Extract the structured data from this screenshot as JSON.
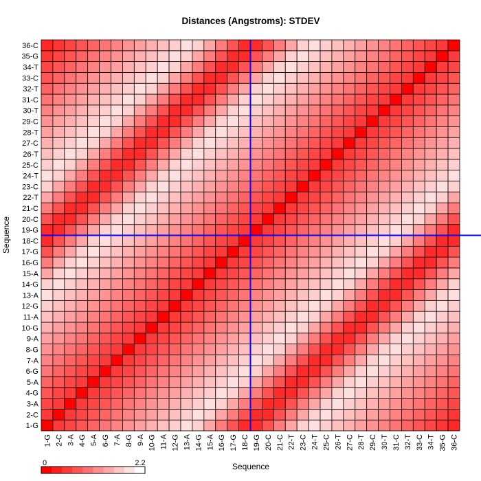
{
  "chart_data": {
    "type": "heatmap",
    "title": "Distances (Angstroms):  STDEV",
    "xlabel": "Sequence",
    "ylabel": "Sequence",
    "categories": [
      "1-G",
      "2-C",
      "3-A",
      "4-G",
      "5-A",
      "6-G",
      "7-A",
      "8-G",
      "9-A",
      "10-G",
      "11-A",
      "12-G",
      "13-A",
      "14-G",
      "15-A",
      "16-G",
      "17-G",
      "18-C",
      "19-G",
      "20-C",
      "21-C",
      "22-T",
      "23-C",
      "24-T",
      "25-C",
      "26-T",
      "27-C",
      "28-T",
      "29-C",
      "30-T",
      "31-C",
      "32-T",
      "33-C",
      "34-T",
      "35-G",
      "36-C"
    ],
    "color_scale": {
      "min": 0,
      "max": 2.2,
      "min_label": "0",
      "max_label": "2.2",
      "low_color": "#ff0000",
      "high_color": "#ffffff"
    },
    "grid": true,
    "crosshair": {
      "x": "18-C",
      "y": "18-C",
      "color": "#0000ff"
    },
    "values": [
      [
        0.0,
        0.5,
        0.6,
        0.73,
        0.86,
        1.0,
        1.13,
        1.26,
        1.39,
        1.52,
        1.66,
        1.79,
        1.92,
        1.8,
        1.44,
        1.08,
        0.72,
        0.36,
        0.36,
        0.72,
        1.08,
        1.44,
        1.8,
        1.92,
        1.79,
        1.66,
        1.52,
        1.39,
        1.26,
        1.13,
        1.0,
        0.86,
        0.73,
        0.6,
        0.47,
        0.34
      ],
      [
        0.5,
        0.0,
        0.5,
        0.6,
        0.73,
        0.86,
        1.0,
        1.13,
        1.26,
        1.39,
        1.52,
        1.66,
        1.79,
        1.92,
        1.8,
        1.44,
        1.08,
        0.72,
        0.36,
        0.36,
        0.72,
        1.08,
        1.44,
        1.8,
        1.92,
        1.79,
        1.66,
        1.52,
        1.39,
        1.26,
        1.13,
        1.0,
        0.86,
        0.73,
        0.6,
        0.47
      ],
      [
        0.6,
        0.5,
        0.0,
        0.5,
        0.6,
        0.73,
        0.86,
        1.0,
        1.13,
        1.26,
        1.39,
        1.52,
        1.66,
        1.79,
        1.92,
        1.8,
        1.44,
        1.08,
        0.72,
        0.36,
        0.36,
        0.72,
        1.08,
        1.44,
        1.8,
        1.92,
        1.79,
        1.66,
        1.52,
        1.39,
        1.26,
        1.13,
        1.0,
        0.86,
        0.73,
        0.6
      ],
      [
        0.73,
        0.6,
        0.5,
        0.0,
        0.5,
        0.6,
        0.73,
        0.86,
        1.0,
        1.13,
        1.26,
        1.39,
        1.52,
        1.66,
        1.79,
        1.92,
        1.8,
        1.44,
        1.08,
        0.72,
        0.36,
        0.36,
        0.72,
        1.08,
        1.44,
        1.8,
        1.92,
        1.79,
        1.66,
        1.52,
        1.39,
        1.26,
        1.13,
        1.0,
        0.86,
        0.73
      ],
      [
        0.86,
        0.73,
        0.6,
        0.5,
        0.0,
        0.5,
        0.6,
        0.73,
        0.86,
        1.0,
        1.13,
        1.26,
        1.39,
        1.52,
        1.66,
        1.79,
        1.92,
        1.8,
        1.44,
        1.08,
        0.72,
        0.36,
        0.36,
        0.72,
        1.08,
        1.44,
        1.8,
        1.92,
        1.79,
        1.66,
        1.52,
        1.39,
        1.26,
        1.13,
        1.0,
        0.86
      ],
      [
        1.0,
        0.86,
        0.73,
        0.6,
        0.5,
        0.0,
        0.5,
        0.6,
        0.73,
        0.86,
        1.0,
        1.13,
        1.26,
        1.39,
        1.52,
        1.66,
        1.79,
        1.92,
        1.8,
        1.44,
        1.08,
        0.72,
        0.36,
        0.36,
        0.72,
        1.08,
        1.44,
        1.8,
        1.92,
        1.79,
        1.66,
        1.52,
        1.39,
        1.26,
        1.13,
        1.0
      ],
      [
        1.13,
        1.0,
        0.86,
        0.73,
        0.6,
        0.5,
        0.0,
        0.5,
        0.6,
        0.73,
        0.86,
        1.0,
        1.13,
        1.26,
        1.39,
        1.52,
        1.66,
        1.79,
        1.92,
        1.8,
        1.44,
        1.08,
        0.72,
        0.36,
        0.36,
        0.72,
        1.08,
        1.44,
        1.8,
        1.92,
        1.79,
        1.66,
        1.52,
        1.39,
        1.26,
        1.13
      ],
      [
        1.26,
        1.13,
        1.0,
        0.86,
        0.73,
        0.6,
        0.5,
        0.0,
        0.5,
        0.6,
        0.73,
        0.86,
        1.0,
        1.13,
        1.26,
        1.39,
        1.52,
        1.66,
        1.79,
        1.92,
        1.8,
        1.44,
        1.08,
        0.72,
        0.36,
        0.36,
        0.72,
        1.08,
        1.44,
        1.8,
        1.92,
        1.79,
        1.66,
        1.52,
        1.39,
        1.26
      ],
      [
        1.39,
        1.26,
        1.13,
        1.0,
        0.86,
        0.73,
        0.6,
        0.5,
        0.0,
        0.5,
        0.6,
        0.73,
        0.86,
        1.0,
        1.13,
        1.26,
        1.39,
        1.52,
        1.66,
        1.79,
        1.92,
        1.8,
        1.44,
        1.08,
        0.72,
        0.36,
        0.36,
        0.72,
        1.08,
        1.44,
        1.8,
        1.92,
        1.79,
        1.66,
        1.52,
        1.39
      ],
      [
        1.52,
        1.39,
        1.26,
        1.13,
        1.0,
        0.86,
        0.73,
        0.6,
        0.5,
        0.0,
        0.5,
        0.6,
        0.73,
        0.86,
        1.0,
        1.13,
        1.26,
        1.39,
        1.52,
        1.66,
        1.79,
        1.92,
        1.8,
        1.44,
        1.08,
        0.72,
        0.36,
        0.36,
        0.72,
        1.08,
        1.44,
        1.8,
        1.92,
        1.79,
        1.66,
        1.52
      ],
      [
        1.66,
        1.52,
        1.39,
        1.26,
        1.13,
        1.0,
        0.86,
        0.73,
        0.6,
        0.5,
        0.0,
        0.5,
        0.6,
        0.73,
        0.86,
        1.0,
        1.13,
        1.26,
        1.39,
        1.52,
        1.66,
        1.79,
        1.92,
        1.8,
        1.44,
        1.08,
        0.72,
        0.36,
        0.36,
        0.72,
        1.08,
        1.44,
        1.8,
        1.92,
        1.79,
        1.66
      ],
      [
        1.79,
        1.66,
        1.52,
        1.39,
        1.26,
        1.13,
        1.0,
        0.86,
        0.73,
        0.6,
        0.5,
        0.0,
        0.5,
        0.6,
        0.73,
        0.86,
        1.0,
        1.13,
        1.26,
        1.39,
        1.52,
        1.66,
        1.79,
        1.92,
        1.8,
        1.44,
        1.08,
        0.72,
        0.36,
        0.36,
        0.72,
        1.08,
        1.44,
        1.8,
        1.92,
        1.79
      ],
      [
        1.92,
        1.79,
        1.66,
        1.52,
        1.39,
        1.26,
        1.13,
        1.0,
        0.86,
        0.73,
        0.6,
        0.5,
        0.0,
        0.5,
        0.6,
        0.73,
        0.86,
        1.0,
        1.13,
        1.26,
        1.39,
        1.52,
        1.66,
        1.79,
        1.92,
        1.8,
        1.44,
        1.08,
        0.72,
        0.36,
        0.36,
        0.72,
        1.08,
        1.44,
        1.8,
        1.92
      ],
      [
        1.8,
        1.92,
        1.79,
        1.66,
        1.52,
        1.39,
        1.26,
        1.13,
        1.0,
        0.86,
        0.73,
        0.6,
        0.5,
        0.0,
        0.5,
        0.6,
        0.73,
        0.86,
        1.0,
        1.13,
        1.26,
        1.39,
        1.52,
        1.66,
        1.79,
        1.92,
        1.8,
        1.44,
        1.08,
        0.72,
        0.36,
        0.36,
        0.72,
        1.08,
        1.44,
        1.8
      ],
      [
        1.44,
        1.8,
        1.92,
        1.79,
        1.66,
        1.52,
        1.39,
        1.26,
        1.13,
        1.0,
        0.86,
        0.73,
        0.6,
        0.5,
        0.0,
        0.5,
        0.6,
        0.73,
        0.86,
        1.0,
        1.13,
        1.26,
        1.39,
        1.52,
        1.66,
        1.79,
        1.92,
        1.8,
        1.44,
        1.08,
        0.72,
        0.36,
        0.36,
        0.72,
        1.08,
        1.44
      ],
      [
        1.08,
        1.44,
        1.8,
        1.92,
        1.79,
        1.66,
        1.52,
        1.39,
        1.26,
        1.13,
        1.0,
        0.86,
        0.73,
        0.6,
        0.5,
        0.0,
        0.5,
        0.6,
        0.73,
        0.86,
        1.0,
        1.13,
        1.26,
        1.39,
        1.52,
        1.66,
        1.79,
        1.92,
        1.8,
        1.44,
        1.08,
        0.72,
        0.36,
        0.36,
        0.72,
        1.08
      ],
      [
        0.72,
        1.08,
        1.44,
        1.8,
        1.92,
        1.79,
        1.66,
        1.52,
        1.39,
        1.26,
        1.13,
        1.0,
        0.86,
        0.73,
        0.6,
        0.5,
        0.0,
        0.5,
        0.6,
        0.73,
        0.86,
        1.0,
        1.13,
        1.26,
        1.39,
        1.52,
        1.66,
        1.79,
        1.92,
        1.8,
        1.44,
        1.08,
        0.72,
        0.36,
        0.36,
        0.72
      ],
      [
        0.36,
        0.72,
        1.08,
        1.44,
        1.8,
        1.92,
        1.79,
        1.66,
        1.52,
        1.39,
        1.26,
        1.13,
        1.0,
        0.86,
        0.73,
        0.6,
        0.5,
        0.0,
        0.5,
        0.6,
        0.73,
        0.86,
        1.0,
        1.13,
        1.26,
        1.39,
        1.52,
        1.66,
        1.79,
        1.92,
        1.8,
        1.44,
        1.08,
        0.72,
        0.36,
        0.36
      ],
      [
        0.36,
        0.36,
        0.72,
        1.08,
        1.44,
        1.8,
        1.92,
        1.79,
        1.66,
        1.52,
        1.39,
        1.26,
        1.13,
        1.0,
        0.86,
        0.73,
        0.6,
        0.5,
        0.0,
        0.5,
        0.6,
        0.73,
        0.86,
        1.0,
        1.13,
        1.26,
        1.39,
        1.52,
        1.66,
        1.79,
        1.92,
        1.8,
        1.44,
        1.08,
        0.72,
        0.36
      ],
      [
        0.72,
        0.36,
        0.36,
        0.72,
        1.08,
        1.44,
        1.8,
        1.92,
        1.79,
        1.66,
        1.52,
        1.39,
        1.26,
        1.13,
        1.0,
        0.86,
        0.73,
        0.6,
        0.5,
        0.0,
        0.5,
        0.6,
        0.73,
        0.86,
        1.0,
        1.13,
        1.26,
        1.39,
        1.52,
        1.66,
        1.79,
        1.92,
        1.8,
        1.44,
        1.08,
        0.72
      ],
      [
        1.08,
        0.72,
        0.36,
        0.36,
        0.72,
        1.08,
        1.44,
        1.8,
        1.92,
        1.79,
        1.66,
        1.52,
        1.39,
        1.26,
        1.13,
        1.0,
        0.86,
        0.73,
        0.6,
        0.5,
        0.0,
        0.5,
        0.6,
        0.73,
        0.86,
        1.0,
        1.13,
        1.26,
        1.39,
        1.52,
        1.66,
        1.79,
        1.92,
        1.8,
        1.44,
        1.08
      ],
      [
        1.44,
        1.08,
        0.72,
        0.36,
        0.36,
        0.72,
        1.08,
        1.44,
        1.8,
        1.92,
        1.79,
        1.66,
        1.52,
        1.39,
        1.26,
        1.13,
        1.0,
        0.86,
        0.73,
        0.6,
        0.5,
        0.0,
        0.5,
        0.6,
        0.73,
        0.86,
        1.0,
        1.13,
        1.26,
        1.39,
        1.52,
        1.66,
        1.79,
        1.92,
        1.8,
        1.44
      ],
      [
        1.8,
        1.44,
        1.08,
        0.72,
        0.36,
        0.36,
        0.72,
        1.08,
        1.44,
        1.8,
        1.92,
        1.79,
        1.66,
        1.52,
        1.39,
        1.26,
        1.13,
        1.0,
        0.86,
        0.73,
        0.6,
        0.5,
        0.0,
        0.5,
        0.6,
        0.73,
        0.86,
        1.0,
        1.13,
        1.26,
        1.39,
        1.52,
        1.66,
        1.79,
        1.92,
        1.8
      ],
      [
        1.92,
        1.8,
        1.44,
        1.08,
        0.72,
        0.36,
        0.36,
        0.72,
        1.08,
        1.44,
        1.8,
        1.92,
        1.79,
        1.66,
        1.52,
        1.39,
        1.26,
        1.13,
        1.0,
        0.86,
        0.73,
        0.6,
        0.5,
        0.0,
        0.5,
        0.6,
        0.73,
        0.86,
        1.0,
        1.13,
        1.26,
        1.39,
        1.52,
        1.66,
        1.79,
        1.92
      ],
      [
        1.79,
        1.92,
        1.8,
        1.44,
        1.08,
        0.72,
        0.36,
        0.36,
        0.72,
        1.08,
        1.44,
        1.8,
        1.92,
        1.79,
        1.66,
        1.52,
        1.39,
        1.26,
        1.13,
        1.0,
        0.86,
        0.73,
        0.6,
        0.5,
        0.0,
        0.5,
        0.6,
        0.73,
        0.86,
        1.0,
        1.13,
        1.26,
        1.39,
        1.52,
        1.66,
        1.79
      ],
      [
        1.66,
        1.79,
        1.92,
        1.8,
        1.44,
        1.08,
        0.72,
        0.36,
        0.36,
        0.72,
        1.08,
        1.44,
        1.8,
        1.92,
        1.79,
        1.66,
        1.52,
        1.39,
        1.26,
        1.13,
        1.0,
        0.86,
        0.73,
        0.6,
        0.5,
        0.0,
        0.5,
        0.6,
        0.73,
        0.86,
        1.0,
        1.13,
        1.26,
        1.39,
        1.52,
        1.66
      ],
      [
        1.52,
        1.66,
        1.79,
        1.92,
        1.8,
        1.44,
        1.08,
        0.72,
        0.36,
        0.36,
        0.72,
        1.08,
        1.44,
        1.8,
        1.92,
        1.79,
        1.66,
        1.52,
        1.39,
        1.26,
        1.13,
        1.0,
        0.86,
        0.73,
        0.6,
        0.5,
        0.0,
        0.5,
        0.6,
        0.73,
        0.86,
        1.0,
        1.13,
        1.26,
        1.39,
        1.52
      ],
      [
        1.39,
        1.52,
        1.66,
        1.79,
        1.92,
        1.8,
        1.44,
        1.08,
        0.72,
        0.36,
        0.36,
        0.72,
        1.08,
        1.44,
        1.8,
        1.92,
        1.79,
        1.66,
        1.52,
        1.39,
        1.26,
        1.13,
        1.0,
        0.86,
        0.73,
        0.6,
        0.5,
        0.0,
        0.5,
        0.6,
        0.73,
        0.86,
        1.0,
        1.13,
        1.26,
        1.39
      ],
      [
        1.26,
        1.39,
        1.52,
        1.66,
        1.79,
        1.92,
        1.8,
        1.44,
        1.08,
        0.72,
        0.36,
        0.36,
        0.72,
        1.08,
        1.44,
        1.8,
        1.92,
        1.79,
        1.66,
        1.52,
        1.39,
        1.26,
        1.13,
        1.0,
        0.86,
        0.73,
        0.6,
        0.5,
        0.0,
        0.5,
        0.6,
        0.73,
        0.86,
        1.0,
        1.13,
        1.26
      ],
      [
        1.13,
        1.26,
        1.39,
        1.52,
        1.66,
        1.79,
        1.92,
        1.8,
        1.44,
        1.08,
        0.72,
        0.36,
        0.36,
        0.72,
        1.08,
        1.44,
        1.8,
        1.92,
        1.79,
        1.66,
        1.52,
        1.39,
        1.26,
        1.13,
        1.0,
        0.86,
        0.73,
        0.6,
        0.5,
        0.0,
        0.5,
        0.6,
        0.73,
        0.86,
        1.0,
        1.13
      ],
      [
        1.0,
        1.13,
        1.26,
        1.39,
        1.52,
        1.66,
        1.79,
        1.92,
        1.8,
        1.44,
        1.08,
        0.72,
        0.36,
        0.36,
        0.72,
        1.08,
        1.44,
        1.8,
        1.92,
        1.79,
        1.66,
        1.52,
        1.39,
        1.26,
        1.13,
        1.0,
        0.86,
        0.73,
        0.6,
        0.5,
        0.0,
        0.5,
        0.6,
        0.73,
        0.86,
        1.0
      ],
      [
        0.86,
        1.0,
        1.13,
        1.26,
        1.39,
        1.52,
        1.66,
        1.79,
        1.92,
        1.8,
        1.44,
        1.08,
        0.72,
        0.36,
        0.36,
        0.72,
        1.08,
        1.44,
        1.8,
        1.92,
        1.79,
        1.66,
        1.52,
        1.39,
        1.26,
        1.13,
        1.0,
        0.86,
        0.73,
        0.6,
        0.5,
        0.0,
        0.5,
        0.6,
        0.73,
        0.86
      ],
      [
        0.73,
        0.86,
        1.0,
        1.13,
        1.26,
        1.39,
        1.52,
        1.66,
        1.79,
        1.92,
        1.8,
        1.44,
        1.08,
        0.72,
        0.36,
        0.36,
        0.72,
        1.08,
        1.44,
        1.8,
        1.92,
        1.79,
        1.66,
        1.52,
        1.39,
        1.26,
        1.13,
        1.0,
        0.86,
        0.73,
        0.6,
        0.5,
        0.0,
        0.5,
        0.6,
        0.73
      ],
      [
        0.6,
        0.73,
        0.86,
        1.0,
        1.13,
        1.26,
        1.39,
        1.52,
        1.66,
        1.79,
        1.92,
        1.8,
        1.44,
        1.08,
        0.72,
        0.36,
        0.36,
        0.72,
        1.08,
        1.44,
        1.8,
        1.92,
        1.79,
        1.66,
        1.52,
        1.39,
        1.26,
        1.13,
        1.0,
        0.86,
        0.73,
        0.6,
        0.5,
        0.0,
        0.5,
        0.6
      ],
      [
        0.47,
        0.6,
        0.73,
        0.86,
        1.0,
        1.13,
        1.26,
        1.39,
        1.52,
        1.66,
        1.79,
        1.92,
        1.8,
        1.44,
        1.08,
        0.72,
        0.36,
        0.36,
        0.72,
        1.08,
        1.44,
        1.8,
        1.92,
        1.79,
        1.66,
        1.52,
        1.39,
        1.26,
        1.13,
        1.0,
        0.86,
        0.73,
        0.6,
        0.5,
        0.0,
        0.5
      ],
      [
        0.34,
        0.47,
        0.6,
        0.73,
        0.86,
        1.0,
        1.13,
        1.26,
        1.39,
        1.52,
        1.66,
        1.79,
        1.92,
        1.8,
        1.44,
        1.08,
        0.72,
        0.36,
        0.36,
        0.72,
        1.08,
        1.44,
        1.8,
        1.92,
        1.79,
        1.66,
        1.52,
        1.39,
        1.26,
        1.13,
        1.0,
        0.86,
        0.73,
        0.6,
        0.5,
        0.0
      ]
    ]
  }
}
